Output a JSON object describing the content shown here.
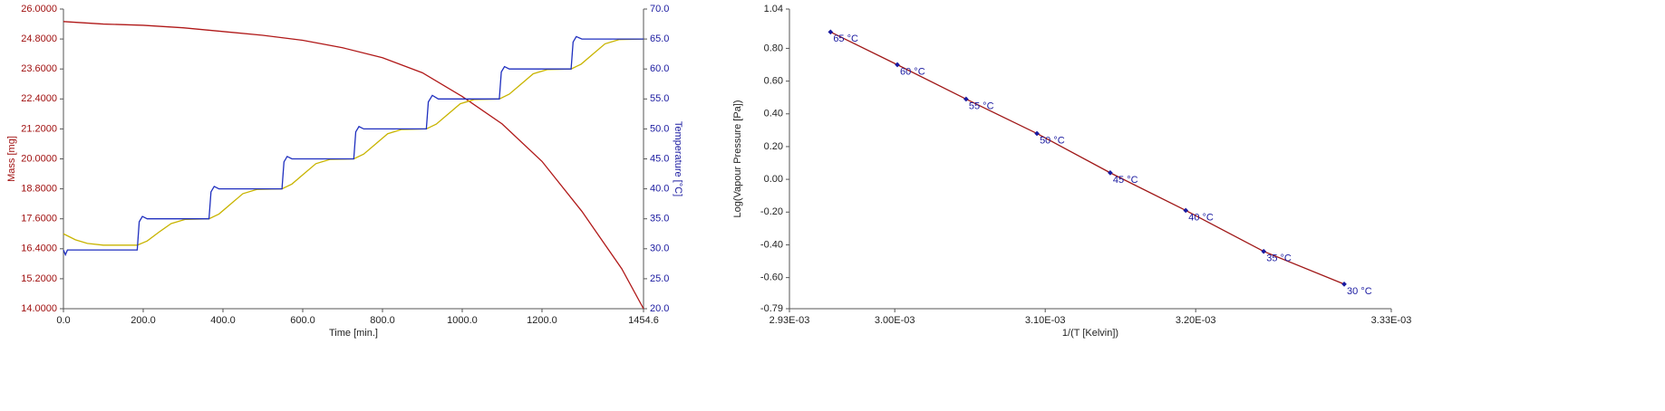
{
  "chart_data": [
    {
      "type": "line",
      "xlabel": "Time [min.]",
      "ylabel": "Mass [mg]",
      "y2label": "Temperature [°C]",
      "ycolor": "#a01010",
      "y2color": "#1a1aa0",
      "xlim": [
        0,
        1454.6
      ],
      "xticks": [
        {
          "value": 0,
          "label": "0.0"
        },
        {
          "value": 200,
          "label": "200.0"
        },
        {
          "value": 400,
          "label": "400.0"
        },
        {
          "value": 600,
          "label": "600.0"
        },
        {
          "value": 800,
          "label": "800.0"
        },
        {
          "value": 1000,
          "label": "1000.0"
        },
        {
          "value": 1200,
          "label": "1200.0"
        },
        1454.6
      ],
      "ylim": [
        14,
        26
      ],
      "yticks": [
        {
          "value": 14,
          "label": "14.0000"
        },
        {
          "value": 15.2,
          "label": "15.2000"
        },
        {
          "value": 16.4,
          "label": "16.4000"
        },
        {
          "value": 17.6,
          "label": "17.6000"
        },
        {
          "value": 18.8,
          "label": "18.8000"
        },
        {
          "value": 20,
          "label": "20.0000"
        },
        {
          "value": 21.2,
          "label": "21.2000"
        },
        {
          "value": 22.4,
          "label": "22.4000"
        },
        {
          "value": 23.6,
          "label": "23.6000"
        },
        {
          "value": 24.8,
          "label": "24.8000"
        },
        {
          "value": 26,
          "label": "26.0000"
        }
      ],
      "y2lim": [
        20,
        70
      ],
      "y2ticks": [
        {
          "value": 20,
          "label": "20.0"
        },
        {
          "value": 25,
          "label": "25.0"
        },
        {
          "value": 30,
          "label": "30.0"
        },
        {
          "value": 35,
          "label": "35.0"
        },
        {
          "value": 40,
          "label": "40.0"
        },
        {
          "value": 45,
          "label": "45.0"
        },
        {
          "value": 50,
          "label": "50.0"
        },
        {
          "value": 55,
          "label": "55.0"
        },
        {
          "value": 60,
          "label": "60.0"
        },
        {
          "value": 65,
          "label": "65.0"
        },
        {
          "value": 70,
          "label": "70.0"
        }
      ],
      "series": [
        {
          "color": "#b01818",
          "axis": "y",
          "x": [
            0,
            100,
            200,
            300,
            400,
            500,
            600,
            700,
            800,
            900,
            1000,
            1100,
            1200,
            1300,
            1400,
            1454.6
          ],
          "values": [
            25.5,
            25.4,
            25.35,
            25.25,
            25.1,
            24.95,
            24.75,
            24.45,
            24.05,
            23.45,
            22.5,
            21.4,
            19.9,
            17.9,
            15.6,
            14.0
          ]
        },
        {
          "color": "#c8b400",
          "axis": "y2",
          "x": [
            0,
            30,
            60,
            100,
            185,
            210,
            240,
            270,
            305,
            365,
            390,
            420,
            450,
            485,
            548,
            573,
            603,
            633,
            668,
            728,
            753,
            783,
            813,
            848,
            910,
            935,
            965,
            995,
            1030,
            1093,
            1118,
            1148,
            1178,
            1213,
            1273,
            1298,
            1328,
            1358,
            1393,
            1454.6
          ],
          "values": [
            32.5,
            31.5,
            30.9,
            30.6,
            30.6,
            31.3,
            32.8,
            34.2,
            34.9,
            35.0,
            35.8,
            37.5,
            39.2,
            39.9,
            40.0,
            40.8,
            42.5,
            44.2,
            44.9,
            45.0,
            45.8,
            47.5,
            49.2,
            49.9,
            50.0,
            50.8,
            52.5,
            54.2,
            54.9,
            55.0,
            55.8,
            57.5,
            59.2,
            59.9,
            60.0,
            60.8,
            62.5,
            64.2,
            64.9,
            65.0
          ]
        },
        {
          "color": "#1f2fbf",
          "axis": "y2",
          "x": [
            0,
            5,
            10,
            185,
            190,
            198,
            210,
            365,
            370,
            378,
            390,
            548,
            553,
            561,
            573,
            728,
            733,
            741,
            753,
            910,
            915,
            925,
            940,
            1093,
            1098,
            1106,
            1118,
            1273,
            1278,
            1286,
            1300,
            1454.6
          ],
          "values": [
            29.8,
            29.0,
            29.8,
            29.8,
            34.5,
            35.4,
            35.0,
            35.0,
            39.5,
            40.4,
            40.0,
            40.0,
            44.5,
            45.4,
            45.0,
            45.0,
            49.5,
            50.4,
            50.0,
            50.0,
            54.5,
            55.6,
            55.0,
            55.0,
            59.5,
            60.4,
            60.0,
            60.0,
            64.5,
            65.4,
            65.0,
            65.0
          ]
        }
      ]
    },
    {
      "type": "line",
      "markers": true,
      "xlabel": "1/(T [Kelvin])",
      "ylabel": "Log(Vapour Pressure [Pa])",
      "xlim": [
        0.00293,
        0.00333
      ],
      "xticks": [
        {
          "value": 0.00293,
          "label": "2.93E-03"
        },
        {
          "value": 0.003,
          "label": "3.00E-03"
        },
        {
          "value": 0.0031,
          "label": "3.10E-03"
        },
        {
          "value": 0.0032,
          "label": "3.20E-03"
        },
        {
          "value": 0.00333,
          "label": "3.33E-03"
        }
      ],
      "ylim": [
        -0.79,
        1.04
      ],
      "yticks": [
        1.04,
        {
          "value": 0.8,
          "label": "0.80"
        },
        {
          "value": 0.6,
          "label": "0.60"
        },
        {
          "value": 0.4,
          "label": "0.40"
        },
        {
          "value": 0.2,
          "label": "0.20"
        },
        {
          "value": 0,
          "label": "0.00"
        },
        {
          "value": -0.2,
          "label": "-0.20"
        },
        {
          "value": -0.4,
          "label": "-0.40"
        },
        {
          "value": -0.6,
          "label": "-0.60"
        },
        -0.79
      ],
      "x": [
        0.0029573,
        0.0030017,
        0.0030474,
        0.0030945,
        0.0031432,
        0.0031934,
        0.0032452,
        0.0032987
      ],
      "point_labels": [
        "65 °C",
        "60 °C",
        "55 °C",
        "50 °C",
        "45 °C",
        "40 °C",
        "35 °C",
        "30 °C"
      ],
      "series": [
        {
          "color": "#a01818",
          "marker_color": "#1a1aa0",
          "values": [
            0.9,
            0.7,
            0.49,
            0.28,
            0.04,
            -0.19,
            -0.44,
            -0.64
          ]
        }
      ]
    }
  ]
}
